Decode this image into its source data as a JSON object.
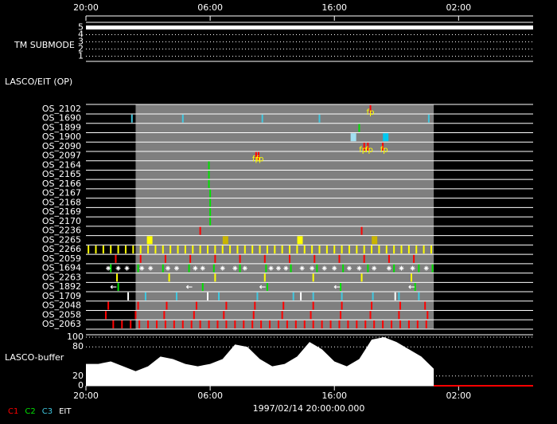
{
  "chart_data": {
    "type": "timeline",
    "xlim": [
      0,
      36
    ],
    "xticks": [
      {
        "value": 0,
        "label": "20:00"
      },
      {
        "value": 10,
        "label": "06:00"
      },
      {
        "value": 20,
        "label": "16:00"
      },
      {
        "value": 30,
        "label": "02:00"
      }
    ],
    "date_label": "1997/02/14 20:00:00.000",
    "tm_panel": {
      "label": "TM SUBMODE",
      "ylim": [
        0.5,
        5.5
      ],
      "yticks": [
        1,
        2,
        3,
        4,
        5
      ],
      "x": [
        0,
        36
      ],
      "values": [
        5,
        5
      ],
      "color": "#ffffff"
    },
    "op_label": "LASCO/EIT (OP)",
    "shade": [
      4,
      28
    ],
    "shade_color": "#7f7f7f",
    "rows": [
      {
        "name": "OS_2102",
        "events": [
          {
            "color": "#ff0000",
            "style": "tick",
            "times": [
              22.9
            ]
          }
        ],
        "notes": [
          {
            "t": 22.9,
            "text": "fp"
          }
        ]
      },
      {
        "name": "OS_1690",
        "events": [
          {
            "color": "#40c8e0",
            "style": "tick",
            "times": [
              3.7,
              7.8,
              14.2,
              18.8,
              27.6
            ]
          }
        ]
      },
      {
        "name": "OS_1899",
        "events": [
          {
            "color": "#00e000",
            "style": "tick",
            "times": [
              22.0
            ]
          }
        ]
      },
      {
        "name": "OS_1900",
        "events": [
          {
            "color": "#a0e0f0",
            "style": "block",
            "times": [
              21.5
            ]
          },
          {
            "color": "#00c8f0",
            "style": "block",
            "times": [
              24.1
            ]
          }
        ]
      },
      {
        "name": "OS_2090",
        "events": [
          {
            "color": "#ff0000",
            "style": "tick",
            "times": [
              22.4,
              22.7,
              23.9
            ]
          }
        ],
        "notes": [
          {
            "t": 22.3,
            "text": "fp"
          },
          {
            "t": 22.8,
            "text": "fp"
          },
          {
            "t": 24.0,
            "text": "fp"
          }
        ]
      },
      {
        "name": "OS_2097",
        "events": [
          {
            "color": "#ff0000",
            "style": "tick",
            "times": [
              13.7,
              13.9
            ]
          }
        ],
        "notes": [
          {
            "t": 13.7,
            "text": "fp"
          },
          {
            "t": 14.0,
            "text": "fp"
          }
        ]
      },
      {
        "name": "OS_2164",
        "events": [
          {
            "color": "#00e000",
            "style": "tick",
            "times": [
              9.9
            ]
          }
        ]
      },
      {
        "name": "OS_2165",
        "events": [
          {
            "color": "#00e000",
            "style": "tick",
            "times": [
              9.9
            ]
          }
        ]
      },
      {
        "name": "OS_2166",
        "events": [
          {
            "color": "#00e000",
            "style": "tick",
            "times": [
              9.9
            ]
          }
        ]
      },
      {
        "name": "OS_2167",
        "events": [
          {
            "color": "#00e000",
            "style": "tick",
            "times": [
              10.0
            ]
          }
        ]
      },
      {
        "name": "OS_2168",
        "events": [
          {
            "color": "#00e000",
            "style": "tick",
            "times": [
              10.0
            ]
          }
        ]
      },
      {
        "name": "OS_2169",
        "events": [
          {
            "color": "#00e000",
            "style": "tick",
            "times": [
              10.0
            ]
          }
        ]
      },
      {
        "name": "OS_2170",
        "events": [
          {
            "color": "#00e000",
            "style": "tick",
            "times": [
              10.0
            ]
          }
        ]
      },
      {
        "name": "OS_2236",
        "events": [
          {
            "color": "#ff0000",
            "style": "tick",
            "times": [
              9.2,
              22.2
            ]
          }
        ]
      },
      {
        "name": "OS_2265",
        "events": [
          {
            "color": "#ffff00",
            "style": "block",
            "times": [
              5.1,
              17.2
            ]
          },
          {
            "color": "#c8b400",
            "style": "block",
            "times": [
              11.2,
              23.2
            ]
          }
        ]
      },
      {
        "name": "OS_2266",
        "events": [
          {
            "color": "#ffff00",
            "style": "tick",
            "times": [
              0.2,
              0.8,
              1.4,
              2.0,
              2.6,
              3.2,
              3.8,
              4.4,
              5.0,
              5.6,
              6.2,
              6.8,
              7.4,
              8.0,
              8.6,
              9.2,
              9.8,
              10.4,
              11.0,
              11.6,
              12.2,
              12.8,
              13.4,
              14.0,
              14.6,
              15.2,
              15.8,
              16.4,
              17.0,
              17.6,
              18.2,
              18.8,
              19.4,
              20.0,
              20.6,
              21.2,
              21.8,
              22.4,
              23.0,
              23.6,
              24.2,
              24.8,
              25.4,
              26.0,
              26.6,
              27.2,
              27.8
            ]
          }
        ]
      },
      {
        "name": "OS_2059",
        "events": [
          {
            "color": "#ff0000",
            "style": "tick",
            "times": [
              2.4,
              4.4,
              6.4,
              8.4,
              10.4,
              12.4,
              14.4,
              16.4,
              18.4,
              20.4,
              22.4,
              24.4,
              26.4
            ]
          }
        ]
      },
      {
        "name": "OS_1694",
        "events": [
          {
            "color": "#00e000",
            "style": "tick",
            "times": [
              2.0,
              4.2,
              6.2,
              8.3,
              10.3,
              12.4,
              14.5,
              16.5,
              18.6,
              20.7,
              22.7,
              24.8,
              26.8,
              27.9
            ]
          },
          {
            "color": "#ffffff",
            "style": "star",
            "times": [
              1.8,
              2.6,
              3.3,
              4.5,
              5.2,
              6.6,
              7.3,
              8.8,
              9.4,
              11.0,
              12.0,
              12.8,
              14.9,
              15.5,
              16.1,
              17.4,
              18.2,
              19.2,
              20.0,
              21.2,
              22.0,
              23.2,
              24.4,
              25.4,
              26.3,
              27.4
            ]
          }
        ]
      },
      {
        "name": "OS_2263",
        "events": [
          {
            "color": "#ffff00",
            "style": "tick",
            "times": [
              2.5,
              6.7,
              10.4,
              14.4,
              18.3,
              22.2,
              26.2
            ]
          }
        ]
      },
      {
        "name": "OS_1892",
        "events": [
          {
            "color": "#00e000",
            "style": "tick",
            "times": [
              2.6,
              9.4,
              14.6,
              20.5,
              26.5
            ]
          },
          {
            "color": "#ffffff",
            "style": "arrow",
            "times": [
              2.2,
              8.3,
              14.2,
              20.2,
              26.2
            ]
          }
        ]
      },
      {
        "name": "OS_1709",
        "events": [
          {
            "color": "#40c8e0",
            "style": "tick",
            "times": [
              4.8,
              7.3,
              10.7,
              13.8,
              16.7,
              18.3,
              20.6,
              23.1,
              25.2,
              26.8
            ]
          },
          {
            "color": "#ffffff",
            "style": "tick",
            "times": [
              3.4,
              9.8,
              17.3,
              24.9
            ]
          }
        ]
      },
      {
        "name": "OS_2048",
        "events": [
          {
            "color": "#ff0000",
            "style": "tick",
            "times": [
              1.8,
              4.2,
              6.5,
              8.9,
              11.3,
              13.6,
              15.9,
              18.3,
              20.6,
              23.0,
              25.3,
              27.3
            ]
          }
        ]
      },
      {
        "name": "OS_2058",
        "events": [
          {
            "color": "#ff0000",
            "style": "tick",
            "times": [
              1.6,
              4.0,
              6.3,
              8.7,
              11.1,
              13.5,
              15.8,
              18.1,
              20.5,
              22.9,
              25.2,
              27.5
            ]
          }
        ]
      },
      {
        "name": "OS_2063",
        "events": [
          {
            "color": "#ff0000",
            "style": "tick",
            "times": [
              2.2,
              2.9,
              3.6,
              4.3,
              5.0,
              5.7,
              6.4,
              7.1,
              7.8,
              8.5,
              9.2,
              9.9,
              10.6,
              11.3,
              12.0,
              12.7,
              13.4,
              14.1,
              14.8,
              15.5,
              16.2,
              16.9,
              17.6,
              18.3,
              19.0,
              19.7,
              20.4,
              21.1,
              21.8,
              22.5,
              23.2,
              23.9,
              24.6,
              25.3,
              26.0,
              26.7,
              27.4
            ]
          }
        ]
      }
    ],
    "buffer": {
      "label": "LASCO-buffer",
      "ylim": [
        0,
        105
      ],
      "yticks": [
        0,
        20,
        80,
        100
      ],
      "series": [
        {
          "color": "#ffffff",
          "style": "area",
          "x": [
            0,
            1,
            2,
            3,
            4,
            5,
            6,
            7,
            8,
            9,
            10,
            11,
            12,
            13,
            14,
            15,
            16,
            17,
            18,
            19,
            20,
            21,
            22,
            23,
            24,
            25,
            26,
            27,
            28
          ],
          "values": [
            45,
            45,
            50,
            40,
            30,
            40,
            60,
            55,
            45,
            40,
            45,
            55,
            85,
            80,
            55,
            40,
            45,
            60,
            90,
            75,
            50,
            40,
            55,
            95,
            100,
            90,
            75,
            60,
            35
          ]
        },
        {
          "color": "#ff0000",
          "style": "line",
          "x": [
            28,
            36
          ],
          "values": [
            0,
            0
          ]
        }
      ]
    },
    "legend": [
      {
        "name": "C1",
        "color": "#ff0000"
      },
      {
        "name": "C2",
        "color": "#00e000"
      },
      {
        "name": "C3",
        "color": "#40c8e0"
      },
      {
        "name": "EIT",
        "color": "#ffffff"
      }
    ]
  }
}
